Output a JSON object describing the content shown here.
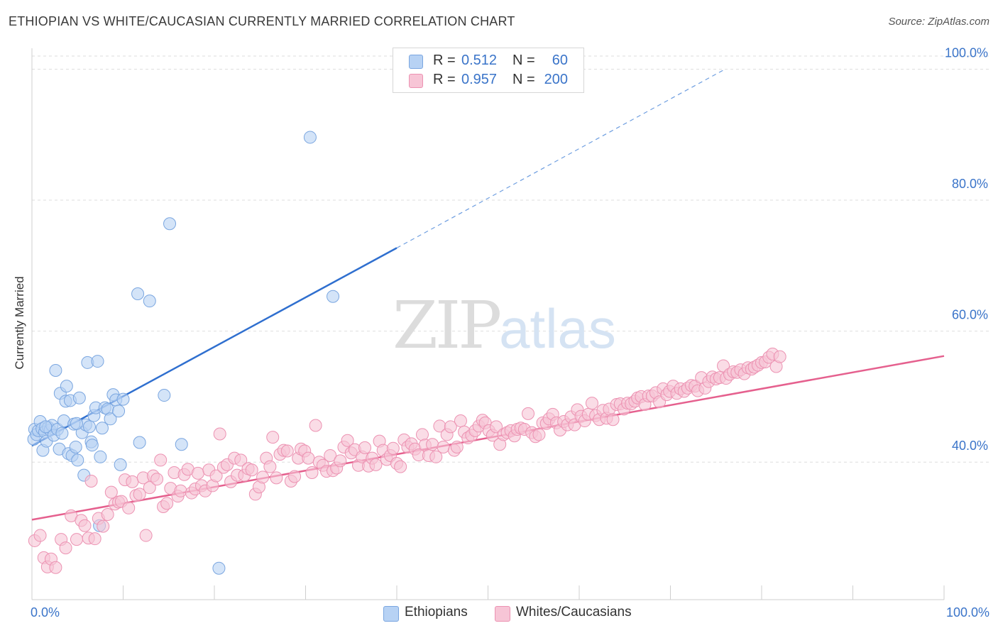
{
  "title": "ETHIOPIAN VS WHITE/CAUCASIAN CURRENTLY MARRIED CORRELATION CHART",
  "source": "Source: ZipAtlas.com",
  "watermark": {
    "zip": "ZIP",
    "atlas": "atlas"
  },
  "legend": {
    "rows": [
      {
        "r_label": "R =",
        "r_value": "0.512",
        "n_label": "N =",
        "n_value": "60",
        "color": "#b7d2f4",
        "border": "#7aa6e0"
      },
      {
        "r_label": "R =",
        "r_value": "0.957",
        "n_label": "N =",
        "n_value": "200",
        "color": "#f7c5d6",
        "border": "#ec92b2"
      }
    ]
  },
  "bottom_legend": [
    {
      "label": "Ethiopians",
      "color": "#b7d2f4",
      "border": "#7aa6e0"
    },
    {
      "label": "Whites/Caucasians",
      "color": "#f7c5d6",
      "border": "#ec92b2"
    }
  ],
  "chart_data": {
    "type": "scatter",
    "title": "ETHIOPIAN VS WHITE/CAUCASIAN CURRENTLY MARRIED CORRELATION CHART",
    "xlabel": "",
    "ylabel": "Currently Married",
    "xlim": [
      0,
      100
    ],
    "ylim": [
      19,
      102
    ],
    "x_tick_labels": [
      "0.0%",
      "100.0%"
    ],
    "y_ticks": [
      40,
      60,
      80,
      100
    ],
    "y_tick_labels": [
      "40.0%",
      "60.0%",
      "80.0%",
      "100.0%"
    ],
    "grid": "horizontal dashed",
    "legend_position": "top-center",
    "series": [
      {
        "name": "Ethiopians",
        "color": "#7aa6e0",
        "fill": "#b7d2f4",
        "trend": {
          "x": [
            0,
            40
          ],
          "y": [
            42.5,
            72.7
          ],
          "extend_dashed_to_x": 76,
          "extend_dashed_to_y": 100
        },
        "points": [
          [
            0.2,
            43.5
          ],
          [
            0.3,
            45.0
          ],
          [
            0.5,
            44.2
          ],
          [
            0.7,
            44.8
          ],
          [
            0.9,
            46.2
          ],
          [
            1.1,
            45.1
          ],
          [
            1.2,
            41.8
          ],
          [
            1.4,
            44.6
          ],
          [
            1.6,
            43.2
          ],
          [
            1.8,
            45.3
          ],
          [
            2.0,
            44.9
          ],
          [
            2.2,
            45.6
          ],
          [
            2.4,
            44.1
          ],
          [
            2.6,
            54.0
          ],
          [
            2.8,
            45.0
          ],
          [
            3.0,
            42.0
          ],
          [
            3.1,
            50.5
          ],
          [
            3.3,
            44.4
          ],
          [
            3.5,
            46.3
          ],
          [
            3.7,
            49.3
          ],
          [
            3.8,
            51.6
          ],
          [
            4.0,
            41.3
          ],
          [
            4.2,
            49.4
          ],
          [
            4.4,
            41.0
          ],
          [
            4.6,
            45.8
          ],
          [
            4.8,
            42.3
          ],
          [
            5.0,
            40.3
          ],
          [
            5.2,
            49.8
          ],
          [
            5.5,
            44.5
          ],
          [
            5.7,
            38.0
          ],
          [
            5.9,
            45.7
          ],
          [
            6.1,
            55.2
          ],
          [
            6.3,
            45.4
          ],
          [
            6.5,
            43.1
          ],
          [
            6.6,
            42.6
          ],
          [
            6.8,
            47.1
          ],
          [
            7.0,
            48.3
          ],
          [
            7.2,
            55.4
          ],
          [
            7.4,
            30.3
          ],
          [
            7.5,
            40.8
          ],
          [
            7.7,
            45.2
          ],
          [
            8.0,
            48.3
          ],
          [
            8.3,
            48.1
          ],
          [
            8.6,
            46.6
          ],
          [
            8.9,
            50.3
          ],
          [
            9.2,
            49.5
          ],
          [
            9.5,
            47.8
          ],
          [
            9.7,
            39.6
          ],
          [
            10.0,
            49.6
          ],
          [
            11.6,
            65.7
          ],
          [
            11.8,
            43.0
          ],
          [
            12.9,
            64.6
          ],
          [
            14.5,
            50.2
          ],
          [
            15.1,
            76.4
          ],
          [
            16.4,
            42.7
          ],
          [
            20.5,
            23.8
          ],
          [
            30.5,
            89.6
          ],
          [
            33.0,
            65.3
          ],
          [
            4.9,
            45.9
          ],
          [
            1.5,
            45.4
          ]
        ]
      },
      {
        "name": "Whites/Caucasians",
        "color": "#ec92b2",
        "fill": "#f7c5d6",
        "trend": {
          "x": [
            0,
            100
          ],
          "y": [
            31.2,
            56.2
          ]
        },
        "points": [
          [
            0.3,
            28.0
          ],
          [
            0.9,
            28.8
          ],
          [
            1.3,
            25.4
          ],
          [
            1.7,
            24.0
          ],
          [
            2.1,
            25.2
          ],
          [
            2.6,
            23.9
          ],
          [
            3.2,
            28.2
          ],
          [
            3.7,
            26.9
          ],
          [
            4.3,
            31.8
          ],
          [
            4.9,
            28.2
          ],
          [
            5.4,
            31.1
          ],
          [
            5.8,
            30.3
          ],
          [
            6.2,
            28.4
          ],
          [
            6.5,
            37.1
          ],
          [
            6.9,
            28.3
          ],
          [
            7.3,
            31.4
          ],
          [
            7.8,
            30.2
          ],
          [
            8.3,
            32.0
          ],
          [
            8.7,
            35.4
          ],
          [
            9.1,
            33.6
          ],
          [
            9.5,
            33.9
          ],
          [
            9.8,
            34.0
          ],
          [
            10.2,
            37.3
          ],
          [
            10.6,
            33.0
          ],
          [
            11.0,
            37.0
          ],
          [
            11.4,
            34.9
          ],
          [
            11.8,
            35.1
          ],
          [
            12.2,
            37.6
          ],
          [
            12.5,
            28.8
          ],
          [
            12.9,
            36.1
          ],
          [
            13.3,
            37.9
          ],
          [
            13.7,
            37.4
          ],
          [
            14.1,
            40.3
          ],
          [
            14.4,
            33.2
          ],
          [
            14.8,
            33.7
          ],
          [
            15.2,
            36.0
          ],
          [
            15.6,
            38.4
          ],
          [
            16.0,
            34.8
          ],
          [
            16.3,
            35.6
          ],
          [
            16.7,
            38.1
          ],
          [
            17.1,
            38.9
          ],
          [
            17.5,
            35.3
          ],
          [
            17.9,
            35.9
          ],
          [
            18.2,
            38.3
          ],
          [
            18.6,
            36.4
          ],
          [
            19.0,
            35.6
          ],
          [
            19.4,
            38.8
          ],
          [
            19.8,
            36.4
          ],
          [
            20.2,
            37.9
          ],
          [
            20.6,
            44.3
          ],
          [
            21.0,
            39.2
          ],
          [
            21.4,
            39.6
          ],
          [
            21.8,
            37.0
          ],
          [
            22.2,
            40.6
          ],
          [
            22.5,
            38.0
          ],
          [
            22.9,
            40.3
          ],
          [
            23.3,
            38.0
          ],
          [
            23.7,
            39.0
          ],
          [
            24.1,
            38.8
          ],
          [
            24.5,
            35.1
          ],
          [
            24.9,
            36.2
          ],
          [
            25.3,
            37.7
          ],
          [
            25.7,
            40.6
          ],
          [
            26.1,
            39.3
          ],
          [
            26.4,
            43.8
          ],
          [
            26.8,
            37.6
          ],
          [
            27.2,
            41.2
          ],
          [
            27.6,
            41.8
          ],
          [
            28.0,
            41.7
          ],
          [
            28.4,
            37.1
          ],
          [
            28.8,
            37.8
          ],
          [
            29.2,
            40.6
          ],
          [
            29.5,
            42.0
          ],
          [
            29.9,
            41.7
          ],
          [
            30.3,
            40.6
          ],
          [
            30.7,
            38.4
          ],
          [
            31.1,
            45.6
          ],
          [
            31.5,
            40.0
          ],
          [
            31.9,
            39.5
          ],
          [
            32.3,
            38.6
          ],
          [
            32.7,
            41.0
          ],
          [
            33.0,
            38.7
          ],
          [
            33.4,
            39.1
          ],
          [
            33.8,
            40.2
          ],
          [
            34.2,
            42.3
          ],
          [
            34.6,
            43.3
          ],
          [
            35.0,
            41.4
          ],
          [
            35.4,
            41.9
          ],
          [
            35.8,
            39.5
          ],
          [
            36.2,
            40.8
          ],
          [
            36.5,
            42.2
          ],
          [
            36.9,
            39.4
          ],
          [
            37.3,
            40.6
          ],
          [
            37.7,
            39.6
          ],
          [
            38.1,
            43.2
          ],
          [
            38.5,
            41.8
          ],
          [
            38.9,
            40.4
          ],
          [
            39.3,
            41.0
          ],
          [
            39.6,
            42.1
          ],
          [
            40.0,
            39.8
          ],
          [
            40.4,
            39.3
          ],
          [
            40.8,
            43.4
          ],
          [
            41.2,
            42.3
          ],
          [
            41.6,
            42.8
          ],
          [
            42.0,
            42.0
          ],
          [
            42.4,
            41.1
          ],
          [
            42.8,
            44.2
          ],
          [
            43.1,
            42.6
          ],
          [
            43.5,
            41.0
          ],
          [
            43.9,
            42.7
          ],
          [
            44.3,
            40.8
          ],
          [
            44.7,
            45.5
          ],
          [
            45.1,
            42.3
          ],
          [
            45.5,
            44.2
          ],
          [
            45.9,
            45.4
          ],
          [
            46.3,
            41.8
          ],
          [
            46.6,
            42.3
          ],
          [
            47.0,
            46.3
          ],
          [
            47.4,
            44.6
          ],
          [
            47.8,
            43.7
          ],
          [
            48.2,
            44.1
          ],
          [
            48.6,
            44.8
          ],
          [
            49.0,
            45.5
          ],
          [
            49.4,
            46.4
          ],
          [
            49.7,
            46.0
          ],
          [
            50.1,
            44.8
          ],
          [
            50.5,
            44.1
          ],
          [
            50.9,
            45.4
          ],
          [
            51.3,
            42.7
          ],
          [
            51.7,
            44.2
          ],
          [
            52.1,
            44.5
          ],
          [
            52.5,
            44.8
          ],
          [
            52.9,
            44.0
          ],
          [
            53.2,
            45.0
          ],
          [
            53.6,
            45.2
          ],
          [
            54.0,
            45.0
          ],
          [
            54.4,
            47.4
          ],
          [
            54.8,
            44.5
          ],
          [
            55.2,
            43.9
          ],
          [
            55.6,
            44.2
          ],
          [
            56.0,
            46.0
          ],
          [
            56.4,
            45.9
          ],
          [
            56.7,
            46.6
          ],
          [
            57.1,
            47.3
          ],
          [
            57.5,
            46.0
          ],
          [
            57.9,
            44.9
          ],
          [
            58.3,
            46.2
          ],
          [
            58.7,
            45.7
          ],
          [
            59.1,
            46.9
          ],
          [
            59.5,
            45.7
          ],
          [
            59.8,
            48.0
          ],
          [
            60.2,
            47.0
          ],
          [
            60.6,
            46.3
          ],
          [
            61.0,
            47.3
          ],
          [
            61.4,
            49.0
          ],
          [
            61.8,
            47.1
          ],
          [
            62.2,
            46.5
          ],
          [
            62.6,
            47.9
          ],
          [
            63.0,
            46.7
          ],
          [
            63.3,
            48.1
          ],
          [
            63.7,
            46.5
          ],
          [
            64.1,
            48.8
          ],
          [
            64.5,
            48.9
          ],
          [
            64.9,
            48.1
          ],
          [
            65.3,
            49.0
          ],
          [
            65.7,
            48.9
          ],
          [
            66.1,
            49.3
          ],
          [
            66.4,
            49.8
          ],
          [
            66.8,
            50.0
          ],
          [
            67.2,
            48.8
          ],
          [
            67.6,
            50.1
          ],
          [
            68.0,
            50.1
          ],
          [
            68.4,
            50.6
          ],
          [
            68.8,
            49.2
          ],
          [
            69.2,
            51.2
          ],
          [
            69.6,
            50.3
          ],
          [
            69.9,
            50.8
          ],
          [
            70.3,
            51.6
          ],
          [
            70.7,
            50.5
          ],
          [
            71.1,
            51.2
          ],
          [
            71.5,
            50.8
          ],
          [
            71.9,
            51.3
          ],
          [
            72.3,
            51.7
          ],
          [
            72.7,
            51.6
          ],
          [
            73.0,
            50.9
          ],
          [
            73.4,
            52.9
          ],
          [
            73.8,
            51.3
          ],
          [
            74.2,
            52.3
          ],
          [
            74.6,
            53.0
          ],
          [
            75.0,
            52.7
          ],
          [
            75.4,
            52.9
          ],
          [
            75.8,
            54.7
          ],
          [
            76.1,
            52.8
          ],
          [
            76.5,
            53.4
          ],
          [
            76.9,
            53.8
          ],
          [
            77.3,
            53.7
          ],
          [
            77.7,
            54.1
          ],
          [
            78.1,
            53.5
          ],
          [
            78.5,
            54.4
          ],
          [
            78.9,
            54.2
          ],
          [
            79.2,
            54.5
          ],
          [
            79.6,
            54.8
          ],
          [
            80.0,
            55.2
          ],
          [
            80.4,
            55.3
          ],
          [
            80.8,
            56.0
          ],
          [
            81.2,
            56.5
          ],
          [
            81.6,
            54.6
          ],
          [
            82.0,
            56.1
          ]
        ]
      }
    ]
  }
}
